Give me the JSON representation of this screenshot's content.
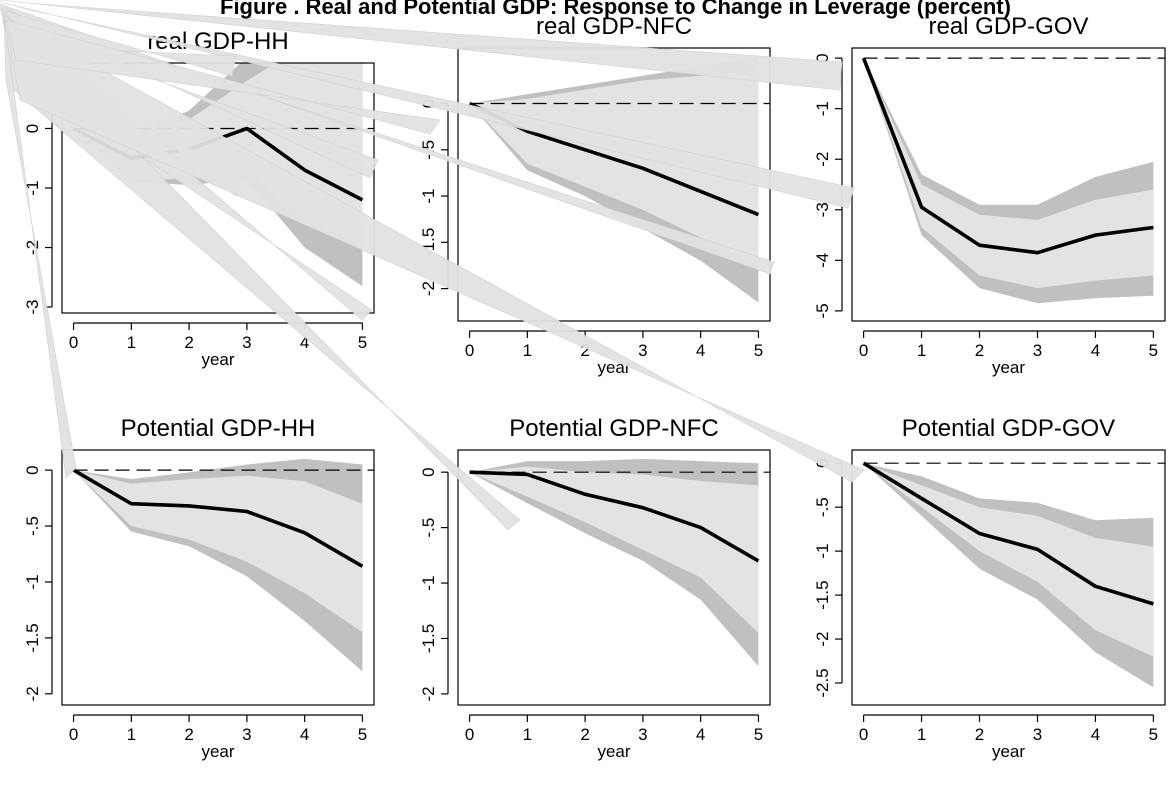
{
  "figure": {
    "title": "Figure . Real and Potential GDP: Response to Change in Leverage (percent)"
  },
  "colors": {
    "outer_band": "#c0c0c0",
    "inner_band": "#e3e3e3",
    "line": "#000000",
    "artifact": "#e2e2e2"
  },
  "chart_data": [
    {
      "type": "line",
      "title": "real GDP-HH",
      "xlabel": "year",
      "x": [
        0,
        1,
        2,
        3,
        4,
        5
      ],
      "xlim": [
        -0.2,
        5.2
      ],
      "ylim": [
        -3.1,
        1.1
      ],
      "yticks": [
        "1",
        "0",
        "-1",
        "-2",
        "-3"
      ],
      "xticks": [
        "0",
        "1",
        "2",
        "3",
        "4",
        "5"
      ],
      "series": [
        {
          "role": "response",
          "values": [
            0,
            -0.5,
            -0.35,
            0,
            -0.7,
            -1.2
          ]
        },
        {
          "role": "band_outer_upper",
          "values": [
            0,
            -0.1,
            0.3,
            1.2,
            1.6,
            1.8
          ]
        },
        {
          "role": "band_inner_upper",
          "values": [
            0,
            -0.15,
            0.15,
            0.8,
            1.4,
            1.6
          ]
        },
        {
          "role": "band_inner_lower",
          "values": [
            0,
            -0.85,
            -0.85,
            -0.7,
            -1.5,
            -2.0
          ]
        },
        {
          "role": "band_outer_lower",
          "values": [
            0,
            -0.9,
            -0.95,
            -0.85,
            -2.0,
            -2.65
          ]
        }
      ],
      "grid": false,
      "zero_line": true
    },
    {
      "type": "line",
      "title": "real GDP-NFC",
      "xlabel": "year",
      "x": [
        0,
        1,
        2,
        3,
        4,
        5
      ],
      "xlim": [
        -0.2,
        5.2
      ],
      "ylim": [
        -2.35,
        0.6
      ],
      "yticks": [
        "0",
        "-.5",
        "-1",
        "-1.5",
        "-2"
      ],
      "xticks": [
        "0",
        "1",
        "2",
        "3",
        "4",
        "5"
      ],
      "series": [
        {
          "role": "response",
          "values": [
            0,
            -0.3,
            -0.5,
            -0.7,
            -0.95,
            -1.2
          ]
        },
        {
          "role": "band_outer_upper",
          "values": [
            0,
            0.1,
            0.2,
            0.3,
            0.4,
            0.5
          ]
        },
        {
          "role": "band_inner_upper",
          "values": [
            0,
            0.05,
            0.15,
            0.25,
            0.3,
            0.35
          ]
        },
        {
          "role": "band_inner_lower",
          "values": [
            0,
            -0.65,
            -0.9,
            -1.15,
            -1.45,
            -1.75
          ]
        },
        {
          "role": "band_outer_lower",
          "values": [
            0,
            -0.72,
            -1.0,
            -1.35,
            -1.7,
            -2.15
          ]
        }
      ],
      "grid": false,
      "zero_line": true
    },
    {
      "type": "line",
      "title": "real GDP-GOV",
      "xlabel": "year",
      "x": [
        0,
        1,
        2,
        3,
        4,
        5
      ],
      "xlim": [
        -0.2,
        5.2
      ],
      "ylim": [
        -5.2,
        0.2
      ],
      "yticks": [
        "0",
        "-1",
        "-2",
        "-3",
        "-4",
        "-5"
      ],
      "xticks": [
        "0",
        "1",
        "2",
        "3",
        "4",
        "5"
      ],
      "series": [
        {
          "role": "response",
          "values": [
            0,
            -2.95,
            -3.7,
            -3.85,
            -3.5,
            -3.35
          ]
        },
        {
          "role": "band_outer_upper",
          "values": [
            0,
            -2.3,
            -2.9,
            -2.9,
            -2.35,
            -2.05
          ]
        },
        {
          "role": "band_inner_upper",
          "values": [
            0,
            -2.5,
            -3.1,
            -3.2,
            -2.8,
            -2.6
          ]
        },
        {
          "role": "band_inner_lower",
          "values": [
            0,
            -3.35,
            -4.3,
            -4.55,
            -4.4,
            -4.3
          ]
        },
        {
          "role": "band_outer_lower",
          "values": [
            0,
            -3.5,
            -4.55,
            -4.85,
            -4.75,
            -4.7
          ]
        }
      ],
      "grid": false,
      "zero_line": true
    },
    {
      "type": "line",
      "title": "Potential GDP-HH",
      "xlabel": "year",
      "x": [
        0,
        1,
        2,
        3,
        4,
        5
      ],
      "xlim": [
        -0.2,
        5.2
      ],
      "ylim": [
        -2.1,
        0.18
      ],
      "yticks": [
        "0",
        "-.5",
        "-1",
        "-1.5",
        "-2"
      ],
      "xticks": [
        "0",
        "1",
        "2",
        "3",
        "4",
        "5"
      ],
      "series": [
        {
          "role": "response",
          "values": [
            0,
            -0.3,
            -0.32,
            -0.37,
            -0.56,
            -0.86
          ]
        },
        {
          "role": "band_outer_upper",
          "values": [
            0,
            -0.08,
            -0.02,
            0.05,
            0.1,
            0.05
          ]
        },
        {
          "role": "band_inner_upper",
          "values": [
            0,
            -0.12,
            -0.08,
            -0.05,
            -0.1,
            -0.3
          ]
        },
        {
          "role": "band_inner_lower",
          "values": [
            0,
            -0.5,
            -0.62,
            -0.82,
            -1.1,
            -1.45
          ]
        },
        {
          "role": "band_outer_lower",
          "values": [
            0,
            -0.55,
            -0.68,
            -0.95,
            -1.35,
            -1.8
          ]
        }
      ],
      "grid": false,
      "zero_line": true
    },
    {
      "type": "line",
      "title": "Potential GDP-NFC",
      "xlabel": "year",
      "x": [
        0,
        1,
        2,
        3,
        4,
        5
      ],
      "xlim": [
        -0.2,
        5.2
      ],
      "ylim": [
        -2.1,
        0.2
      ],
      "yticks": [
        "0",
        "-.5",
        "-1",
        "-1.5",
        "-2"
      ],
      "xticks": [
        "0",
        "1",
        "2",
        "3",
        "4",
        "5"
      ],
      "series": [
        {
          "role": "response",
          "values": [
            0,
            -0.02,
            -0.2,
            -0.32,
            -0.5,
            -0.8
          ]
        },
        {
          "role": "band_outer_upper",
          "values": [
            0,
            0.1,
            0.1,
            0.12,
            0.1,
            0.08
          ]
        },
        {
          "role": "band_inner_upper",
          "values": [
            0,
            0.05,
            0.0,
            -0.02,
            -0.08,
            -0.12
          ]
        },
        {
          "role": "band_inner_lower",
          "values": [
            0,
            -0.22,
            -0.45,
            -0.7,
            -0.95,
            -1.45
          ]
        },
        {
          "role": "band_outer_lower",
          "values": [
            0,
            -0.28,
            -0.55,
            -0.8,
            -1.15,
            -1.75
          ]
        }
      ],
      "grid": false,
      "zero_line": true
    },
    {
      "type": "line",
      "title": "Potential GDP-GOV",
      "xlabel": "year",
      "x": [
        0,
        1,
        2,
        3,
        4,
        5
      ],
      "xlim": [
        -0.2,
        5.2
      ],
      "ylim": [
        -2.75,
        0.15
      ],
      "yticks": [
        "0",
        "-.5",
        "-1",
        "-1.5",
        "-2",
        "-2.5"
      ],
      "xticks": [
        "0",
        "1",
        "2",
        "3",
        "4",
        "5"
      ],
      "series": [
        {
          "role": "response",
          "values": [
            0,
            -0.4,
            -0.8,
            -0.98,
            -1.4,
            -1.6
          ]
        },
        {
          "role": "band_outer_upper",
          "values": [
            0,
            -0.15,
            -0.4,
            -0.45,
            -0.65,
            -0.62
          ]
        },
        {
          "role": "band_inner_upper",
          "values": [
            0,
            -0.25,
            -0.5,
            -0.6,
            -0.85,
            -0.95
          ]
        },
        {
          "role": "band_inner_lower",
          "values": [
            0,
            -0.5,
            -1.0,
            -1.35,
            -1.9,
            -2.2
          ]
        },
        {
          "role": "band_outer_lower",
          "values": [
            0,
            -0.6,
            -1.2,
            -1.55,
            -2.15,
            -2.55
          ]
        }
      ],
      "grid": false,
      "zero_line": true
    }
  ]
}
